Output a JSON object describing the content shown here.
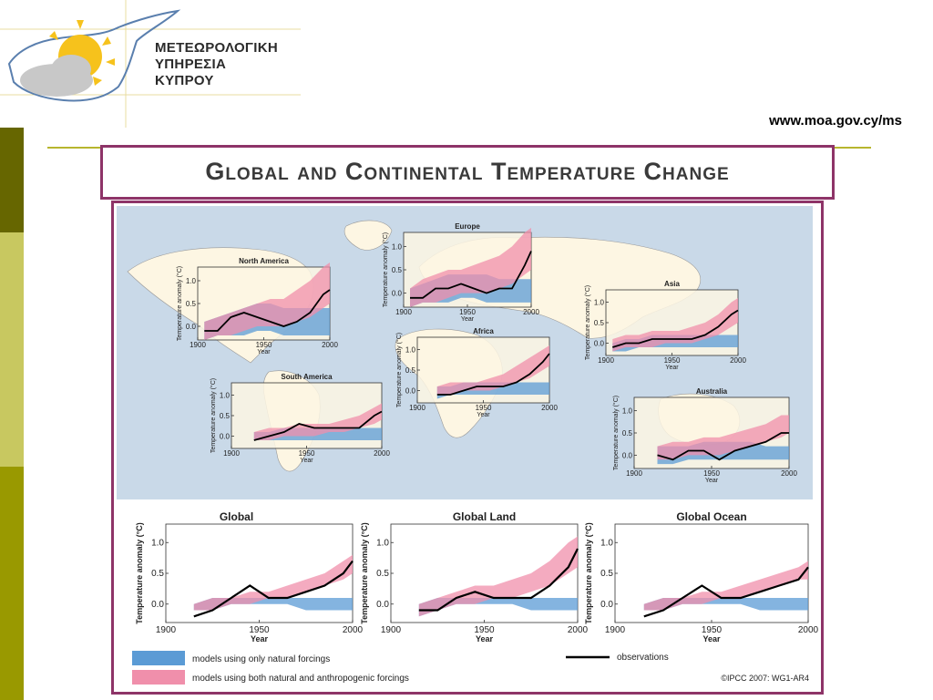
{
  "header": {
    "org_lines": [
      "ΜΕΤΕΩΡΟΛΟΓΙΚΗ",
      "ΥΠΗΡΕΣΙΑ",
      "ΚΥΠΡΟΥ"
    ],
    "url": "www.moa.gov.cy/ms"
  },
  "slide": {
    "title": "Global and Continental Temperature Change"
  },
  "figure": {
    "credit": "©IPCC 2007: WG1-AR4",
    "legend": {
      "natural": "models using only natural forcings",
      "both": "models using both natural and anthropogenic forcings",
      "observations": "observations"
    },
    "colors": {
      "natural": "#5b9bd5",
      "both": "#f08fab",
      "observations": "#000000",
      "ocean": "#c9d9e8",
      "land": "#fdf6e3"
    }
  },
  "chart_data": [
    {
      "type": "area",
      "title": "North America",
      "x_ticks": [
        "1900",
        "1950",
        "2000"
      ],
      "y_ticks": [
        "0.0",
        "0.5",
        "1.0"
      ],
      "xlabel": "Year",
      "ylabel": "Temperature anomaly (°C)",
      "xlim": [
        1900,
        2000
      ],
      "ylim": [
        -0.3,
        1.3
      ],
      "x": [
        1905,
        1915,
        1925,
        1935,
        1945,
        1955,
        1965,
        1975,
        1985,
        1995,
        2000
      ],
      "natural_lo": [
        -0.3,
        -0.2,
        -0.2,
        -0.2,
        -0.1,
        -0.1,
        -0.2,
        -0.2,
        -0.2,
        -0.2,
        -0.2
      ],
      "natural_hi": [
        0.1,
        0.2,
        0.3,
        0.4,
        0.5,
        0.5,
        0.4,
        0.4,
        0.4,
        0.4,
        0.4
      ],
      "both_lo": [
        -0.3,
        -0.2,
        -0.2,
        -0.1,
        0.0,
        0.0,
        0.0,
        0.1,
        0.2,
        0.4,
        0.5
      ],
      "both_hi": [
        0.1,
        0.2,
        0.3,
        0.4,
        0.5,
        0.6,
        0.6,
        0.8,
        1.0,
        1.3,
        1.4
      ],
      "observations": [
        -0.1,
        -0.1,
        0.2,
        0.3,
        0.2,
        0.1,
        0.0,
        0.1,
        0.3,
        0.7,
        0.8
      ]
    },
    {
      "type": "area",
      "title": "Europe",
      "x_ticks": [
        "1900",
        "1950",
        "2000"
      ],
      "y_ticks": [
        "0.0",
        "0.5",
        "1.0"
      ],
      "xlabel": "Year",
      "ylabel": "Temperature anomaly (°C)",
      "xlim": [
        1900,
        2000
      ],
      "ylim": [
        -0.3,
        1.3
      ],
      "x": [
        1905,
        1915,
        1925,
        1935,
        1945,
        1955,
        1965,
        1975,
        1985,
        1995,
        2000
      ],
      "natural_lo": [
        -0.3,
        -0.2,
        -0.2,
        -0.2,
        -0.1,
        -0.1,
        -0.2,
        -0.2,
        -0.2,
        -0.2,
        -0.2
      ],
      "natural_hi": [
        0.1,
        0.2,
        0.3,
        0.4,
        0.4,
        0.4,
        0.4,
        0.3,
        0.3,
        0.3,
        0.3
      ],
      "both_lo": [
        -0.3,
        -0.2,
        -0.2,
        -0.1,
        0.0,
        0.0,
        0.0,
        0.1,
        0.2,
        0.4,
        0.5
      ],
      "both_hi": [
        0.1,
        0.3,
        0.4,
        0.5,
        0.5,
        0.6,
        0.7,
        0.8,
        1.0,
        1.3,
        1.4
      ],
      "observations": [
        -0.1,
        -0.1,
        0.1,
        0.1,
        0.2,
        0.1,
        0.0,
        0.1,
        0.1,
        0.6,
        0.9
      ]
    },
    {
      "type": "area",
      "title": "Asia",
      "x_ticks": [
        "1900",
        "1950",
        "2000"
      ],
      "y_ticks": [
        "0.0",
        "0.5",
        "1.0"
      ],
      "xlabel": "Year",
      "ylabel": "Temperature anomaly (°C)",
      "xlim": [
        1900,
        2000
      ],
      "ylim": [
        -0.3,
        1.3
      ],
      "x": [
        1905,
        1915,
        1925,
        1935,
        1945,
        1955,
        1965,
        1975,
        1985,
        1995,
        2000
      ],
      "natural_lo": [
        -0.2,
        -0.2,
        -0.1,
        -0.1,
        -0.1,
        -0.1,
        -0.1,
        -0.1,
        -0.1,
        -0.1,
        -0.1
      ],
      "natural_hi": [
        0.0,
        0.1,
        0.1,
        0.2,
        0.2,
        0.2,
        0.2,
        0.2,
        0.2,
        0.2,
        0.2
      ],
      "both_lo": [
        -0.2,
        -0.1,
        -0.1,
        -0.1,
        0.0,
        0.0,
        0.0,
        0.1,
        0.2,
        0.4,
        0.5
      ],
      "both_hi": [
        0.1,
        0.2,
        0.2,
        0.3,
        0.3,
        0.3,
        0.4,
        0.5,
        0.7,
        1.0,
        1.1
      ],
      "observations": [
        -0.1,
        0.0,
        0.0,
        0.1,
        0.1,
        0.1,
        0.1,
        0.2,
        0.4,
        0.7,
        0.8
      ]
    },
    {
      "type": "area",
      "title": "Africa",
      "x_ticks": [
        "1900",
        "1950",
        "2000"
      ],
      "y_ticks": [
        "0.0",
        "0.5",
        "1.0"
      ],
      "xlabel": "Year",
      "ylabel": "Temperature anomaly (°C)",
      "xlim": [
        1900,
        2000
      ],
      "ylim": [
        -0.3,
        1.3
      ],
      "x": [
        1915,
        1925,
        1935,
        1945,
        1955,
        1965,
        1975,
        1985,
        1995,
        2000
      ],
      "natural_lo": [
        -0.2,
        -0.1,
        -0.1,
        -0.1,
        -0.1,
        -0.1,
        -0.1,
        -0.1,
        -0.1,
        -0.1
      ],
      "natural_hi": [
        0.1,
        0.1,
        0.2,
        0.2,
        0.2,
        0.2,
        0.2,
        0.2,
        0.2,
        0.2
      ],
      "both_lo": [
        -0.1,
        -0.1,
        0.0,
        0.0,
        0.0,
        0.1,
        0.2,
        0.3,
        0.5,
        0.6
      ],
      "both_hi": [
        0.1,
        0.2,
        0.2,
        0.2,
        0.3,
        0.4,
        0.6,
        0.8,
        1.0,
        1.1
      ],
      "observations": [
        -0.1,
        -0.1,
        0.0,
        0.1,
        0.1,
        0.1,
        0.2,
        0.4,
        0.7,
        0.9
      ]
    },
    {
      "type": "area",
      "title": "South America",
      "x_ticks": [
        "1900",
        "1950",
        "2000"
      ],
      "y_ticks": [
        "0.0",
        "0.5",
        "1.0"
      ],
      "xlabel": "Year",
      "ylabel": "Temperature anomaly (°C)",
      "xlim": [
        1900,
        2000
      ],
      "ylim": [
        -0.3,
        1.3
      ],
      "x": [
        1915,
        1925,
        1935,
        1945,
        1955,
        1965,
        1975,
        1985,
        1995,
        2000
      ],
      "natural_lo": [
        -0.1,
        -0.1,
        -0.1,
        -0.1,
        -0.1,
        -0.1,
        -0.1,
        -0.1,
        -0.1,
        -0.1
      ],
      "natural_hi": [
        0.1,
        0.1,
        0.2,
        0.2,
        0.2,
        0.2,
        0.2,
        0.2,
        0.2,
        0.2
      ],
      "both_lo": [
        -0.1,
        -0.1,
        0.0,
        0.0,
        0.0,
        0.1,
        0.1,
        0.2,
        0.3,
        0.4
      ],
      "both_hi": [
        0.1,
        0.2,
        0.2,
        0.3,
        0.3,
        0.3,
        0.4,
        0.5,
        0.7,
        0.8
      ],
      "observations": [
        -0.1,
        0.0,
        0.1,
        0.3,
        0.2,
        0.2,
        0.2,
        0.2,
        0.5,
        0.6
      ]
    },
    {
      "type": "area",
      "title": "Australia",
      "x_ticks": [
        "1900",
        "1950",
        "2000"
      ],
      "y_ticks": [
        "0.0",
        "0.5",
        "1.0"
      ],
      "xlabel": "Year",
      "ylabel": "Temperature anomaly (°C)",
      "xlim": [
        1900,
        2000
      ],
      "ylim": [
        -0.3,
        1.3
      ],
      "x": [
        1915,
        1925,
        1935,
        1945,
        1955,
        1965,
        1975,
        1985,
        1995,
        2000
      ],
      "natural_lo": [
        -0.2,
        -0.2,
        -0.1,
        -0.1,
        -0.1,
        -0.1,
        -0.1,
        -0.1,
        -0.1,
        -0.1
      ],
      "natural_hi": [
        0.2,
        0.2,
        0.2,
        0.3,
        0.3,
        0.3,
        0.3,
        0.2,
        0.2,
        0.2
      ],
      "both_lo": [
        -0.1,
        -0.1,
        0.0,
        0.0,
        0.0,
        0.1,
        0.2,
        0.3,
        0.4,
        0.5
      ],
      "both_hi": [
        0.2,
        0.3,
        0.3,
        0.4,
        0.4,
        0.5,
        0.6,
        0.7,
        0.9,
        0.9
      ],
      "observations": [
        0.0,
        -0.1,
        0.1,
        0.1,
        -0.1,
        0.1,
        0.2,
        0.3,
        0.5,
        0.5
      ]
    },
    {
      "type": "area",
      "title": "Global",
      "x_ticks": [
        "1900",
        "1950",
        "2000"
      ],
      "y_ticks": [
        "0.0",
        "0.5",
        "1.0"
      ],
      "xlabel": "Year",
      "ylabel": "Temperature anomaly (°C)",
      "xlim": [
        1900,
        2000
      ],
      "ylim": [
        -0.3,
        1.3
      ],
      "x": [
        1915,
        1925,
        1935,
        1945,
        1955,
        1965,
        1975,
        1985,
        1995,
        2000
      ],
      "natural_lo": [
        -0.1,
        -0.1,
        0.0,
        0.0,
        0.0,
        0.0,
        -0.1,
        -0.1,
        -0.1,
        -0.1
      ],
      "natural_hi": [
        0.0,
        0.1,
        0.1,
        0.1,
        0.1,
        0.1,
        0.1,
        0.1,
        0.1,
        0.1
      ],
      "both_lo": [
        -0.1,
        -0.1,
        0.0,
        0.0,
        0.1,
        0.1,
        0.2,
        0.3,
        0.4,
        0.5
      ],
      "both_hi": [
        0.0,
        0.1,
        0.1,
        0.2,
        0.2,
        0.3,
        0.4,
        0.5,
        0.7,
        0.8
      ],
      "observations": [
        -0.2,
        -0.1,
        0.1,
        0.3,
        0.1,
        0.1,
        0.2,
        0.3,
        0.5,
        0.7
      ]
    },
    {
      "type": "area",
      "title": "Global Land",
      "x_ticks": [
        "1900",
        "1950",
        "2000"
      ],
      "y_ticks": [
        "0.0",
        "0.5",
        "1.0"
      ],
      "xlabel": "Year",
      "ylabel": "Temperature anomaly (°C)",
      "xlim": [
        1900,
        2000
      ],
      "ylim": [
        -0.3,
        1.3
      ],
      "x": [
        1915,
        1925,
        1935,
        1945,
        1955,
        1965,
        1975,
        1985,
        1995,
        2000
      ],
      "natural_lo": [
        -0.2,
        -0.1,
        0.0,
        0.0,
        0.0,
        0.0,
        -0.1,
        -0.1,
        -0.1,
        -0.1
      ],
      "natural_hi": [
        0.0,
        0.1,
        0.1,
        0.1,
        0.1,
        0.1,
        0.1,
        0.1,
        0.1,
        0.1
      ],
      "both_lo": [
        -0.2,
        -0.1,
        0.0,
        0.0,
        0.1,
        0.1,
        0.2,
        0.3,
        0.5,
        0.6
      ],
      "both_hi": [
        0.0,
        0.1,
        0.2,
        0.3,
        0.3,
        0.4,
        0.5,
        0.7,
        1.0,
        1.1
      ],
      "observations": [
        -0.1,
        -0.1,
        0.1,
        0.2,
        0.1,
        0.1,
        0.1,
        0.3,
        0.6,
        0.9
      ]
    },
    {
      "type": "area",
      "title": "Global Ocean",
      "x_ticks": [
        "1900",
        "1950",
        "2000"
      ],
      "y_ticks": [
        "0.0",
        "0.5",
        "1.0"
      ],
      "xlabel": "Year",
      "ylabel": "Temperature anomaly (°C)",
      "xlim": [
        1900,
        2000
      ],
      "ylim": [
        -0.3,
        1.3
      ],
      "x": [
        1915,
        1925,
        1935,
        1945,
        1955,
        1965,
        1975,
        1985,
        1995,
        2000
      ],
      "natural_lo": [
        -0.1,
        -0.1,
        0.0,
        0.0,
        0.0,
        0.0,
        -0.1,
        -0.1,
        -0.1,
        -0.1
      ],
      "natural_hi": [
        0.0,
        0.1,
        0.1,
        0.1,
        0.1,
        0.1,
        0.1,
        0.1,
        0.1,
        0.1
      ],
      "both_lo": [
        -0.1,
        -0.1,
        0.0,
        0.0,
        0.1,
        0.1,
        0.2,
        0.3,
        0.4,
        0.4
      ],
      "both_hi": [
        0.0,
        0.1,
        0.1,
        0.2,
        0.2,
        0.3,
        0.4,
        0.5,
        0.6,
        0.7
      ],
      "observations": [
        -0.2,
        -0.1,
        0.1,
        0.3,
        0.1,
        0.1,
        0.2,
        0.3,
        0.4,
        0.6
      ]
    }
  ]
}
